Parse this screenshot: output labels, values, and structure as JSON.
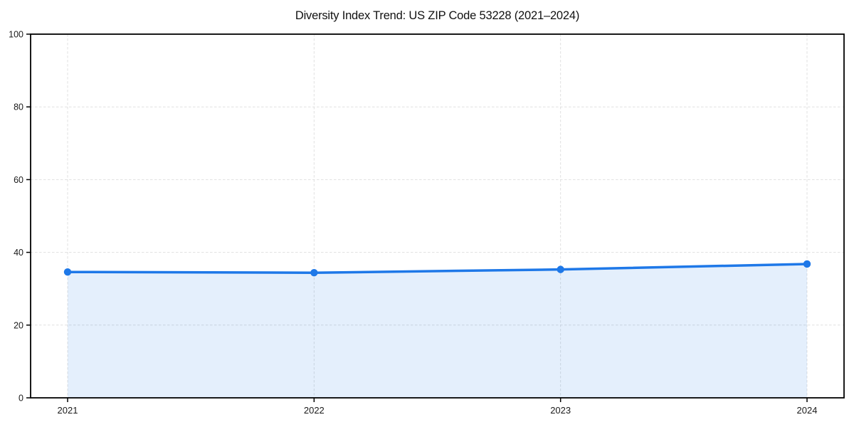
{
  "page": {
    "background": "#ffffff"
  },
  "chart_data": {
    "type": "line",
    "title": "Diversity Index Trend: US ZIP Code 53228 (2021–2024)",
    "categories": [
      "2021",
      "2022",
      "2023",
      "2024"
    ],
    "values": [
      34.6,
      34.4,
      35.3,
      36.8
    ],
    "xlabel": "",
    "ylabel": "",
    "ylim": [
      0,
      100
    ],
    "yticks": [
      0,
      20,
      40,
      60,
      80,
      100
    ],
    "grid": true,
    "grid_style": "dashed",
    "legend": false,
    "area_fill": true,
    "marker": "circle",
    "colors": {
      "line": "#1e78e8",
      "fill": "rgba(30,120,232,0.12)",
      "grid": "#e0e0e0",
      "spine": "#000000",
      "tick_text": "#1a1a1a"
    }
  }
}
